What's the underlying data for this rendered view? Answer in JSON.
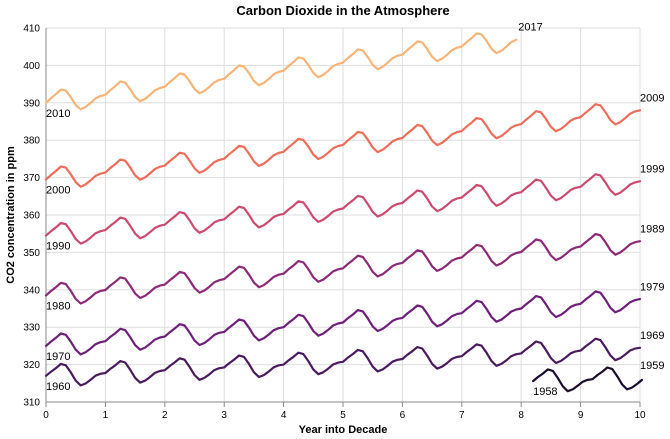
{
  "chart_data": {
    "type": "line",
    "title": "Carbon Dioxide in the Atmosphere",
    "xlabel": "Year into Decade",
    "ylabel": "CO2 concentration in ppm",
    "xlim": [
      0,
      10
    ],
    "ylim": [
      310,
      410
    ],
    "x_ticks": [
      0,
      1,
      2,
      3,
      4,
      5,
      6,
      7,
      8,
      9,
      10
    ],
    "y_ticks": [
      310,
      320,
      330,
      340,
      350,
      360,
      370,
      380,
      390,
      400,
      410
    ],
    "grid": true,
    "seasonal_amplitude_ppm": 3,
    "series": [
      {
        "decade": "1950s",
        "start_label": "1958",
        "end_label": "1959",
        "color": "#1b0d2e",
        "x_start": 8.2,
        "x_end": 10.0,
        "y_start": 315.6,
        "y_end": 316.5
      },
      {
        "decade": "1960s",
        "start_label": "1960",
        "end_label": "1969",
        "color": "#4a1a5e",
        "x_start": 0.0,
        "x_end": 10.0,
        "y_start": 317.0,
        "y_end": 324.5
      },
      {
        "decade": "1970s",
        "start_label": "1970",
        "end_label": "1979",
        "color": "#6d1f7a",
        "x_start": 0.0,
        "x_end": 10.0,
        "y_start": 325.0,
        "y_end": 337.5
      },
      {
        "decade": "1980s",
        "start_label": "1980",
        "end_label": "1989",
        "color": "#8c2a77",
        "x_start": 0.0,
        "x_end": 10.0,
        "y_start": 338.5,
        "y_end": 353.0
      },
      {
        "decade": "1990s",
        "start_label": "1990",
        "end_label": "1999",
        "color": "#cc4a6e",
        "x_start": 0.0,
        "x_end": 10.0,
        "y_start": 354.5,
        "y_end": 369.0
      },
      {
        "decade": "2000s",
        "start_label": "2000",
        "end_label": "2009",
        "color": "#ee6d5a",
        "x_start": 0.0,
        "x_end": 10.0,
        "y_start": 369.5,
        "y_end": 388.0
      },
      {
        "decade": "2010s",
        "start_label": "2010",
        "end_label": "2017",
        "color": "#f8b478",
        "x_start": 0.0,
        "x_end": 7.9,
        "y_start": 390.0,
        "y_end": 407.0
      }
    ]
  }
}
